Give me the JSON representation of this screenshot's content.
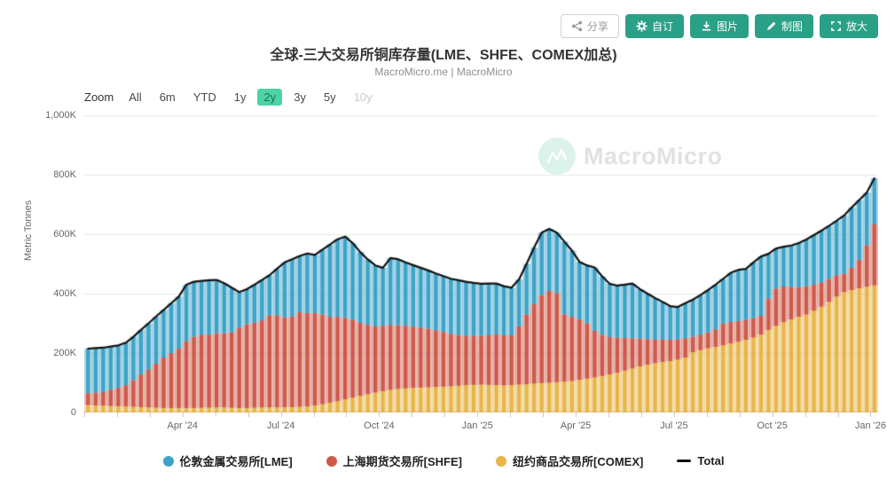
{
  "toolbar": {
    "share": "分享",
    "customize": "自订",
    "image": "图片",
    "chart": "制图",
    "zoom_in": "放大"
  },
  "header": {
    "title": "全球-三大交易所铜库存量(LME、SHFE、COMEX加总)",
    "subtitle": "MacroMicro.me | MacroMicro"
  },
  "zoom_bar": {
    "label": "Zoom",
    "options": [
      "All",
      "6m",
      "YTD",
      "1y",
      "2y",
      "3y",
      "5y",
      "10y"
    ],
    "selected": "2y",
    "disabled": [
      "10y"
    ]
  },
  "watermark": {
    "text": "MacroMicro"
  },
  "chart_data": {
    "type": "bar",
    "stacked": true,
    "frequency": "weekly",
    "title": "全球-三大交易所铜库存量(LME、SHFE、COMEX加总)",
    "xlabel": "",
    "ylabel": "Metric Tonnes",
    "unit": "thousand metric tonnes",
    "ylim": [
      0,
      1000
    ],
    "yticks": [
      "0",
      "200K",
      "400K",
      "600K",
      "800K",
      "1,000K"
    ],
    "xtick_labels": [
      "Apr '24",
      "Jul '24",
      "Oct '24",
      "Jan '25",
      "Apr '25",
      "Jul '25",
      "Oct '25",
      "Jan '26"
    ],
    "xtick_week_index": [
      13,
      26,
      39,
      52,
      65,
      78,
      91,
      104
    ],
    "months_span": 24,
    "grid": true,
    "legend_position": "bottom",
    "series": [
      {
        "name": "伦敦金属交易所[LME]",
        "color": "#3DA3C7",
        "type": "bar",
        "values": [
          150,
          150,
          149,
          145,
          143,
          143,
          146,
          150,
          155,
          159,
          160,
          168,
          175,
          190,
          185,
          181,
          183,
          179,
          168,
          150,
          120,
          118,
          128,
          136,
          135,
          157,
          185,
          193,
          190,
          200,
          195,
          218,
          243,
          261,
          274,
          258,
          238,
          220,
          205,
          195,
          225,
          222,
          213,
          207,
          201,
          196,
          191,
          188,
          185,
          184,
          182,
          178,
          175,
          174,
          171,
          165,
          160,
          158,
          170,
          190,
          210,
          209,
          203,
          245,
          223,
          194,
          195,
          213,
          196,
          179,
          175,
          179,
          184,
          166,
          153,
          139,
          127,
          113,
          109,
          118,
          125,
          133,
          142,
          150,
          151,
          165,
          172,
          171,
          187,
          200,
          151,
          135,
          134,
          139,
          148,
          157,
          167,
          174,
          178,
          183,
          196,
          203,
          202,
          177,
          155
        ]
      },
      {
        "name": "上海期货交易所[SHFE]",
        "color": "#CD5A4B",
        "type": "bar",
        "values": [
          40,
          43,
          46,
          55,
          62,
          72,
          90,
          110,
          128,
          148,
          170,
          185,
          200,
          225,
          240,
          246,
          246,
          250,
          250,
          254,
          270,
          282,
          286,
          293,
          310,
          310,
          302,
          305,
          318,
          315,
          311,
          302,
          289,
          284,
          274,
          262,
          246,
          233,
          223,
          220,
          219,
          215,
          211,
          206,
          202,
          197,
          191,
          184,
          177,
          171,
          166,
          165,
          164,
          167,
          171,
          169,
          168,
          196,
          235,
          268,
          296,
          309,
          300,
          226,
          216,
          203,
          186,
          157,
          139,
          126,
          118,
          110,
          102,
          94,
          86,
          80,
          75,
          72,
          68,
          65,
          52,
          52,
          54,
          59,
          73,
          73,
          70,
          67,
          66,
          63,
          105,
          125,
          120,
          110,
          100,
          95,
          88,
          82,
          78,
          72,
          62,
          75,
          95,
          140,
          205
        ]
      },
      {
        "name": "纽约商品交易所[COMEX]",
        "color": "#E8B54A",
        "type": "bar",
        "values": [
          25,
          24,
          23,
          22,
          21,
          20,
          19,
          18,
          17,
          16,
          15,
          15,
          15,
          15,
          15,
          16,
          16,
          17,
          17,
          16,
          15,
          15,
          16,
          17,
          17,
          17,
          18,
          18,
          19,
          20,
          24,
          28,
          33,
          38,
          44,
          50,
          56,
          62,
          67,
          72,
          76,
          79,
          81,
          83,
          84,
          85,
          86,
          87,
          88,
          90,
          92,
          93,
          94,
          93,
          92,
          91,
          92,
          94,
          95,
          97,
          99,
          100,
          102,
          104,
          106,
          110,
          114,
          118,
          123,
          128,
          134,
          141,
          148,
          155,
          161,
          166,
          170,
          173,
          178,
          185,
          203,
          210,
          216,
          221,
          226,
          232,
          238,
          245,
          252,
          262,
          278,
          292,
          304,
          313,
          322,
          330,
          342,
          356,
          372,
          390,
          405,
          412,
          418,
          423,
          428
        ]
      },
      {
        "name": "Total",
        "color": "#111111",
        "type": "line",
        "derived": "sum_of_bar_series"
      }
    ]
  }
}
